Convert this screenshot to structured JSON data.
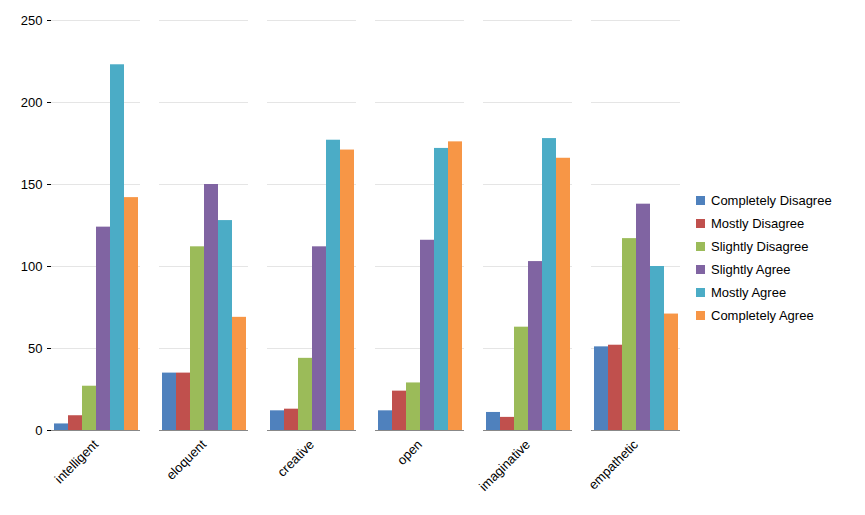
{
  "chart_data": {
    "type": "bar",
    "categories": [
      "intelligent",
      "eloquent",
      "creative",
      "open",
      "imaginative",
      "empathetic"
    ],
    "series": [
      {
        "name": "Completely Disagree",
        "color": "#4f81bd",
        "values": [
          4,
          35,
          12,
          12,
          11,
          51
        ]
      },
      {
        "name": "Mostly Disagree",
        "color": "#c0504d",
        "values": [
          9,
          35,
          13,
          24,
          8,
          52
        ]
      },
      {
        "name": "Slightly Disagree",
        "color": "#9bbb59",
        "values": [
          27,
          112,
          44,
          29,
          63,
          117
        ]
      },
      {
        "name": "Slightly Agree",
        "color": "#8064a2",
        "values": [
          124,
          150,
          112,
          116,
          103,
          138
        ]
      },
      {
        "name": "Mostly Agree",
        "color": "#4bacc6",
        "values": [
          223,
          128,
          177,
          172,
          178,
          100
        ]
      },
      {
        "name": "Completely Agree",
        "color": "#f79646",
        "values": [
          142,
          69,
          171,
          176,
          166,
          71
        ]
      }
    ],
    "ylim": [
      0,
      250
    ],
    "yticks": [
      0,
      50,
      100,
      150,
      200,
      250
    ],
    "grid": true,
    "legend": "right"
  }
}
